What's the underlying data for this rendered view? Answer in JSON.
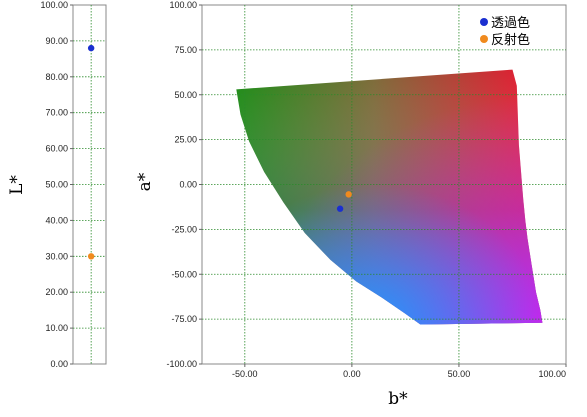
{
  "chart_data": [
    {
      "type": "scatter",
      "ylabel": "L*",
      "ylim": [
        0,
        100
      ],
      "yticks": [
        "0.00",
        "10.00",
        "20.00",
        "30.00",
        "40.00",
        "50.00",
        "60.00",
        "70.00",
        "80.00",
        "90.00",
        "100.00"
      ],
      "grid": true,
      "points": [
        {
          "series": "透過色",
          "y": 88.0
        },
        {
          "series": "反射色",
          "y": 30.0
        }
      ]
    },
    {
      "type": "scatter",
      "xlabel": "b*",
      "ylabel": "a*",
      "xlim": [
        -70,
        100
      ],
      "ylim": [
        -100,
        100
      ],
      "xticks": [
        "-50.00",
        "0.00",
        "50.00",
        "100.00"
      ],
      "yticks": [
        "100.00",
        "75.00",
        "50.00",
        "25.00",
        "0.00",
        "-25.00",
        "-50.00",
        "-75.00",
        "-100.00"
      ],
      "grid": true,
      "legend": "top-right",
      "series": [
        {
          "name": "透過色",
          "color": "#1a2fd0",
          "x": [
            -5.5
          ],
          "y": [
            -13.5
          ]
        },
        {
          "name": "反射色",
          "color": "#f08a1e",
          "x": [
            -1.5
          ],
          "y": [
            -5.5
          ]
        }
      ],
      "gamut_region": true
    }
  ]
}
